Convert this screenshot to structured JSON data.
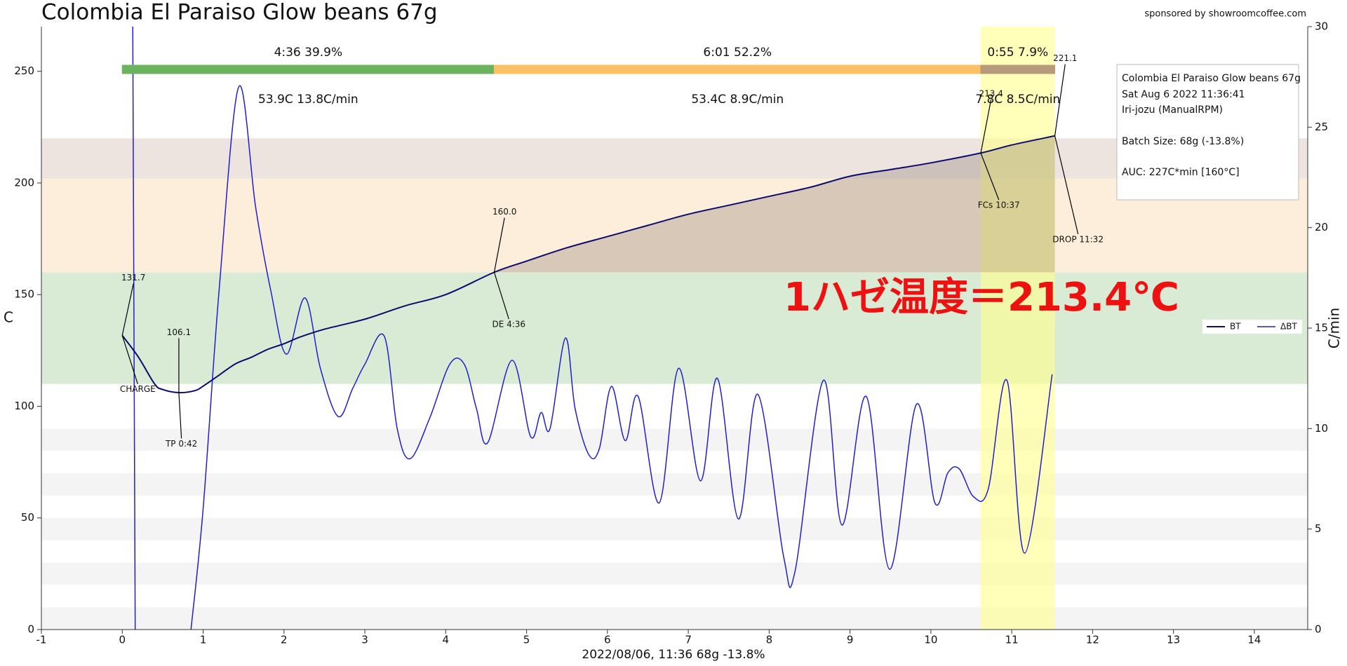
{
  "chart_data": {
    "type": "line",
    "title": "Colombia El Paraiso Glow beans 67g",
    "sponsor": "sponsored by showroomcoffee.com",
    "xlabel": "2022/08/06, 11:36   68g   -13.8%",
    "ylabel": "C",
    "y2label": "C/min",
    "xlim": [
      -1,
      14.66
    ],
    "xticks": [
      -1,
      0,
      1,
      2,
      3,
      4,
      5,
      6,
      7,
      8,
      9,
      10,
      11,
      12,
      13,
      14
    ],
    "ylim": [
      0,
      270
    ],
    "yticks": [
      0,
      50,
      100,
      150,
      200,
      250
    ],
    "y2lim": [
      0,
      30
    ],
    "y2ticks": [
      0,
      5,
      10,
      15,
      20,
      25,
      30
    ],
    "legend": "right",
    "series": [
      {
        "name": "BT",
        "color": "#0b0b6e",
        "x": [
          0,
          0.2,
          0.4,
          0.5,
          0.7,
          0.9,
          1.0,
          1.2,
          1.4,
          1.6,
          1.8,
          2.0,
          2.2,
          2.5,
          3.0,
          3.5,
          4.0,
          4.6,
          5.0,
          5.5,
          6.0,
          6.5,
          7.0,
          7.5,
          8.0,
          8.5,
          9.0,
          9.5,
          10.0,
          10.617,
          11.0,
          11.533
        ],
        "values": [
          131.7,
          122,
          110,
          107.5,
          106.1,
          107,
          109,
          114,
          119,
          122,
          125.5,
          128,
          131,
          134.5,
          139,
          145,
          150,
          160,
          165,
          171,
          176,
          181,
          186,
          190,
          194,
          198,
          203,
          206,
          209,
          213.4,
          217,
          221.1
        ]
      },
      {
        "name": "ΔBT",
        "color": "#1f1fcc",
        "axis": "y2",
        "x": [
          0.13,
          0.16,
          null,
          0.85,
          1.0,
          1.2,
          1.44,
          1.65,
          1.84,
          2.03,
          2.26,
          2.45,
          2.67,
          2.85,
          3.0,
          3.24,
          3.4,
          3.56,
          3.8,
          4.05,
          4.23,
          4.38,
          4.52,
          4.82,
          5.05,
          5.18,
          5.29,
          5.48,
          5.6,
          5.77,
          5.9,
          6.05,
          6.22,
          6.38,
          6.64,
          6.88,
          7.15,
          7.36,
          7.62,
          7.86,
          8.18,
          8.32,
          8.67,
          8.9,
          9.2,
          9.49,
          9.82,
          10.05,
          10.21,
          10.35,
          10.53,
          10.71,
          10.94,
          11.16,
          11.5
        ],
        "values": [
          30,
          0,
          null,
          0,
          6,
          17,
          27,
          21,
          16.8,
          13.7,
          16.5,
          13,
          10.6,
          12,
          13.2,
          14.6,
          10,
          8.5,
          10.5,
          13.2,
          13.2,
          11,
          9.3,
          13.4,
          9.6,
          10.8,
          10.0,
          14.5,
          11,
          8.7,
          9,
          12.1,
          9.4,
          11.6,
          6.3,
          13.0,
          7.4,
          12.5,
          5.5,
          11.7,
          3.6,
          2.9,
          12.4,
          5.2,
          11.6,
          3.0,
          11.2,
          6.3,
          7.8,
          8.0,
          6.6,
          7.0,
          12.4,
          3.8,
          12.7
        ]
      }
    ],
    "events": [
      {
        "name": "CHARGE",
        "x": 0,
        "y": 131.7
      },
      {
        "name": "TP 0:42",
        "x": 0.7,
        "y": 106.1
      },
      {
        "name": "DE 4:36",
        "x": 4.6,
        "y": {
          "value": 160,
          "label": "160.0"
        }
      },
      {
        "name": "FCs 10:37",
        "x": 10.617,
        "y": 213.4
      },
      {
        "name": "DROP 11:32",
        "x": 11.533,
        "y": 221.1
      }
    ],
    "phases": [
      {
        "label": "4:36  39.9%",
        "stats": "53.9C  13.8C/min",
        "color": "#6bb35e"
      },
      {
        "label": "6:01  52.2%",
        "stats": "53.4C  8.9C/min",
        "color": "#fbc166"
      },
      {
        "label": "0:55  7.9%",
        "stats": "7.8C  8.5C/min",
        "color": "#b59a7c"
      }
    ],
    "bands": [
      {
        "from": 110,
        "to": 160,
        "color": "#d9ebd5"
      },
      {
        "from": 160,
        "to": 202,
        "color": "#fdeedc"
      },
      {
        "from": 202,
        "to": 220,
        "color": "#ede4e0"
      }
    ],
    "stripes": [
      [
        0,
        10
      ],
      [
        20,
        30
      ],
      [
        40,
        50
      ],
      [
        60,
        70
      ],
      [
        80,
        90
      ]
    ],
    "info": [
      "Colombia El Paraiso Glow beans 67g",
      "Sat Aug 6 2022 11:36:41",
      "Iri-jozu (ManualRPM)",
      "Batch Size: 68g (-13.8%)",
      "AUC: 227C*min [160°C]"
    ],
    "annotation": "1ハゼ温度＝213.4℃"
  }
}
